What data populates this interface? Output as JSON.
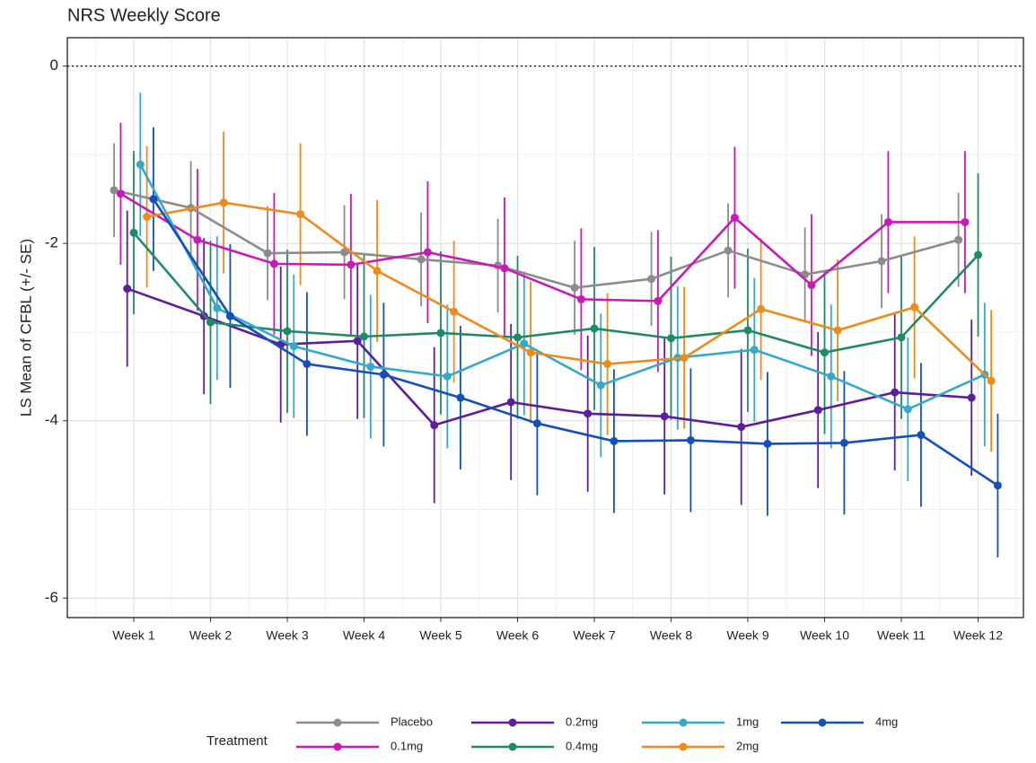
{
  "chart_data": {
    "type": "line",
    "title": "NRS Weekly Score",
    "y_label": "LS Mean of CFBL (+/- SE)",
    "legend_title": "Treatment",
    "legend_position": "bottom",
    "categories": [
      "Week 1",
      "Week 2",
      "Week 3",
      "Week 4",
      "Week 5",
      "Week 6",
      "Week 7",
      "Week 8",
      "Week 9",
      "Week 10",
      "Week 11",
      "Week 12"
    ],
    "ylim": [
      -6.22,
      0.32
    ],
    "yticks": [
      -6,
      -4,
      -2,
      0
    ],
    "hline": 0,
    "grid": true,
    "series": [
      {
        "name": "Placebo",
        "color": "#8c8c8c",
        "values": [
          -1.4,
          -1.6,
          -2.11,
          -2.1,
          -2.18,
          -2.25,
          -2.5,
          -2.4,
          -2.08,
          -2.35,
          -2.2,
          -1.96
        ],
        "errors": [
          0.53,
          0.53,
          0.53,
          0.53,
          0.53,
          0.53,
          0.53,
          0.53,
          0.53,
          0.53,
          0.53,
          0.53
        ]
      },
      {
        "name": "0.1mg",
        "color": "#c71ab7",
        "values": [
          -1.44,
          -1.96,
          -2.23,
          -2.24,
          -2.1,
          -2.28,
          -2.63,
          -2.65,
          -1.71,
          -2.47,
          -1.76,
          -1.76
        ],
        "errors": [
          0.8,
          0.8,
          0.8,
          0.8,
          0.8,
          0.8,
          0.8,
          0.8,
          0.8,
          0.8,
          0.8,
          0.8
        ]
      },
      {
        "name": "0.2mg",
        "color": "#5d1e9a",
        "values": [
          -2.51,
          -2.82,
          -3.14,
          -3.1,
          -4.05,
          -3.79,
          -3.92,
          -3.95,
          -4.07,
          -3.88,
          -3.68,
          -3.74
        ],
        "errors": [
          0.88,
          0.88,
          0.88,
          0.88,
          0.88,
          0.88,
          0.88,
          0.88,
          0.88,
          0.88,
          0.88,
          0.88
        ]
      },
      {
        "name": "0.4mg",
        "color": "#1f8a66",
        "values": [
          -1.88,
          -2.89,
          -2.99,
          -3.05,
          -3.01,
          -3.06,
          -2.96,
          -3.07,
          -2.98,
          -3.23,
          -3.06,
          -2.13
        ],
        "errors": [
          0.92,
          0.92,
          0.92,
          0.92,
          0.92,
          0.92,
          0.92,
          0.92,
          0.92,
          0.92,
          0.92,
          0.92
        ]
      },
      {
        "name": "1mg",
        "color": "#36a8c9",
        "values": [
          -1.11,
          -2.73,
          -3.16,
          -3.39,
          -3.5,
          -3.13,
          -3.6,
          -3.29,
          -3.2,
          -3.5,
          -3.87,
          -3.48
        ],
        "errors": [
          0.81,
          0.81,
          0.81,
          0.81,
          0.81,
          0.81,
          0.81,
          0.81,
          0.81,
          0.81,
          0.81,
          0.81
        ]
      },
      {
        "name": "2mg",
        "color": "#ec8c1d",
        "values": [
          -1.7,
          -1.54,
          -1.67,
          -2.31,
          -2.77,
          -3.23,
          -3.36,
          -3.29,
          -2.74,
          -2.98,
          -2.72,
          -3.55
        ],
        "errors": [
          0.8,
          0.8,
          0.8,
          0.8,
          0.8,
          0.8,
          0.8,
          0.8,
          0.8,
          0.8,
          0.8,
          0.8
        ]
      },
      {
        "name": "4mg",
        "color": "#1450b8",
        "values": [
          -1.5,
          -2.82,
          -3.36,
          -3.48,
          -3.74,
          -4.03,
          -4.23,
          -4.22,
          -4.26,
          -4.25,
          -4.16,
          -4.73
        ],
        "errors": [
          0.81,
          0.81,
          0.81,
          0.81,
          0.81,
          0.81,
          0.81,
          0.81,
          0.81,
          0.81,
          0.81,
          0.81
        ]
      }
    ]
  }
}
